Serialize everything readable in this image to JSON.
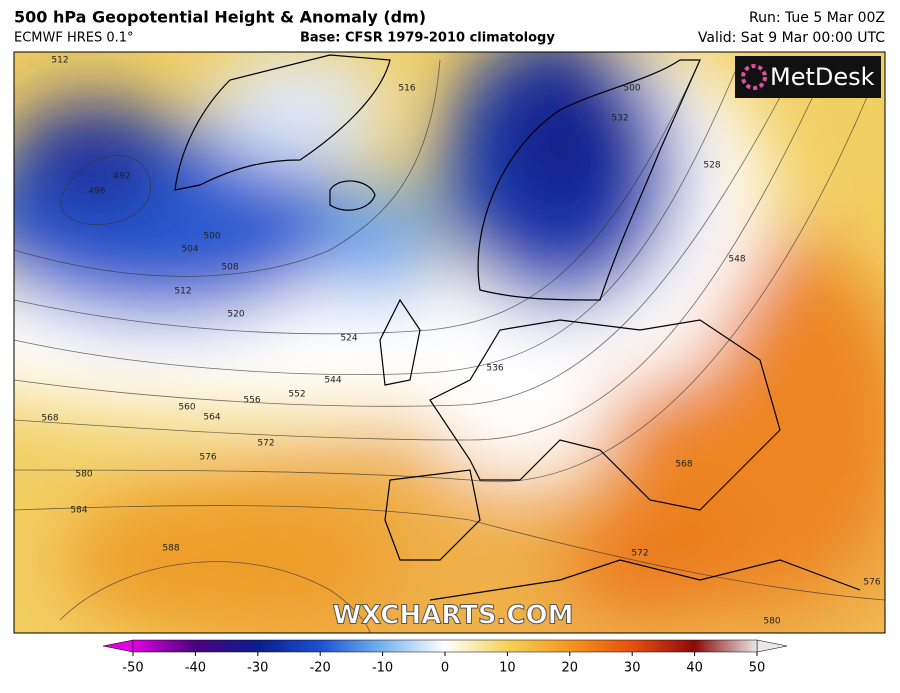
{
  "header": {
    "title": "500 hPa Geopotential Height & Anomaly (dm)",
    "model": "ECMWF HRES 0.1°",
    "base": "Base: CFSR 1979-2010 climatology",
    "run": "Run: Tue 5 Mar 00Z",
    "valid": "Valid: Sat 9 Mar 00:00 UTC"
  },
  "map": {
    "logo": "MetDesk",
    "watermark": "WXCHARTS.COM",
    "contour_labels": [
      "512",
      "516",
      "492",
      "496",
      "500",
      "504",
      "508",
      "512",
      "520",
      "524",
      "544",
      "552",
      "556",
      "560",
      "564",
      "568",
      "572",
      "576",
      "580",
      "584",
      "588",
      "536",
      "528",
      "548",
      "568",
      "572",
      "576",
      "580",
      "500",
      "532"
    ]
  },
  "colorbar": {
    "range": [
      -50,
      50
    ],
    "ticks": [
      -50,
      -40,
      -30,
      -20,
      -10,
      0,
      10,
      20,
      30,
      40,
      50
    ],
    "colors": [
      "#e000e0",
      "#4b0082",
      "#0a1e8c",
      "#1e50d2",
      "#78b4f0",
      "#ffffff",
      "#f5d25a",
      "#f5961e",
      "#e6500f",
      "#8c0a0a",
      "#e8e8e8"
    ]
  }
}
